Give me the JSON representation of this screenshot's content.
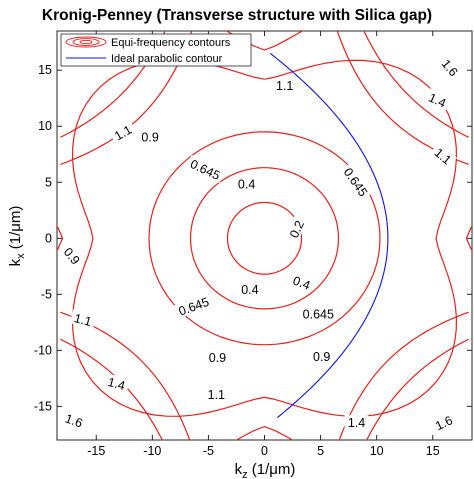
{
  "chart_data": {
    "type": "line",
    "title": "Kronig-Penney (Transverse structure with Silica gap)",
    "xlabel_main": "k",
    "xlabel_sub": "z",
    "xlabel_unit": " (1/μm)",
    "ylabel_main": "k",
    "ylabel_sub": "x",
    "ylabel_unit": " (1/μm)",
    "xlim": [
      -18.5,
      18.5
    ],
    "ylim": [
      -18,
      18.5
    ],
    "xticks": [
      -15,
      -10,
      -5,
      0,
      5,
      10,
      15
    ],
    "yticks": [
      -15,
      -10,
      -5,
      0,
      5,
      10,
      15
    ],
    "grid": false,
    "legend_position": "top-left",
    "series": [
      {
        "name": "Equi-frequency contours",
        "color": "#e8201c"
      },
      {
        "name": "Ideal parabolic contour",
        "color": "#1010e8"
      }
    ],
    "contour_levels": [
      {
        "level": "0.2",
        "a": 3.3,
        "b": 3.2
      },
      {
        "level": "0.4",
        "a": 6.6,
        "b": 6.3
      },
      {
        "level": "0.645",
        "a": 10.3,
        "b": 9.5
      },
      {
        "level": "0.9",
        "x_at_zero": 15.3,
        "y_at_zero": 14.2
      },
      {
        "level": "1.1",
        "x_at_zero": 18.0,
        "y_at_zero": 16.8
      },
      {
        "level": "1.4"
      },
      {
        "level": "1.6"
      }
    ],
    "contour_labels": [
      {
        "text": "0.2",
        "x": 2.9,
        "y": 0.8,
        "angle": 65
      },
      {
        "text": "0.4",
        "x": -1.6,
        "y": 4.8,
        "angle": 0
      },
      {
        "text": "0.4",
        "x": -1.3,
        "y": -4.6,
        "angle": 0
      },
      {
        "text": "0.4",
        "x": 3.3,
        "y": -4.0,
        "angle": -20
      },
      {
        "text": "0.645",
        "x": -5.3,
        "y": 6.1,
        "angle": -25
      },
      {
        "text": "0.645",
        "x": 8.1,
        "y": 5.0,
        "angle": -55
      },
      {
        "text": "0.645",
        "x": -6.3,
        "y": -6.1,
        "angle": 20
      },
      {
        "text": "0.645",
        "x": 4.8,
        "y": -6.8,
        "angle": 0
      },
      {
        "text": "0.9",
        "x": -10.2,
        "y": 9.0,
        "angle": 0
      },
      {
        "text": "0.9",
        "x": -17.2,
        "y": -1.6,
        "angle": -50
      },
      {
        "text": "0.9",
        "x": -4.2,
        "y": -10.7,
        "angle": 0
      },
      {
        "text": "0.9",
        "x": 5.1,
        "y": -10.6,
        "angle": 0
      },
      {
        "text": "1.1",
        "x": 1.8,
        "y": 13.6,
        "angle": 0
      },
      {
        "text": "1.1",
        "x": -12.6,
        "y": 9.4,
        "angle": 30
      },
      {
        "text": "1.1",
        "x": -16.2,
        "y": -7.3,
        "angle": -15
      },
      {
        "text": "1.1",
        "x": -4.3,
        "y": -14.0,
        "angle": 0
      },
      {
        "text": "1.4",
        "x": 15.4,
        "y": 12.3,
        "angle": -25
      },
      {
        "text": "1.4",
        "x": -13.2,
        "y": -13.0,
        "angle": -15
      },
      {
        "text": "1.4",
        "x": 8.2,
        "y": -16.5,
        "angle": 0
      },
      {
        "text": "1.6",
        "x": 16.5,
        "y": 15.2,
        "angle": -50
      },
      {
        "text": "1.6",
        "x": -17.0,
        "y": -16.3,
        "angle": -20
      },
      {
        "text": "1.6",
        "x": 16.0,
        "y": -16.5,
        "angle": 25
      },
      {
        "text": "1.1",
        "x": 15.9,
        "y": 7.3,
        "angle": -40
      }
    ],
    "parabola": {
      "description": "kz = 11 - kx^2 / 26",
      "vertex_kz": 11.0,
      "coef": 0.0385,
      "kx_range": [
        -16.0,
        16.5
      ]
    }
  }
}
